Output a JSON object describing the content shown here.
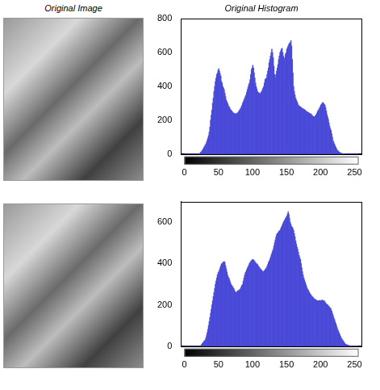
{
  "image_titles": [
    "Original Image"
  ],
  "chart_data": [
    {
      "type": "histogram",
      "title": "Original Histogram",
      "color": "#4a4ad8",
      "bins": [
        0,
        1,
        2,
        3,
        4,
        5,
        6,
        7,
        8,
        9,
        10,
        11,
        12,
        13,
        14,
        15,
        16,
        17,
        18,
        19,
        20,
        21,
        22,
        23,
        24,
        25,
        26,
        27,
        28,
        29,
        30,
        31,
        32,
        33,
        34,
        35,
        36,
        37,
        38,
        39,
        40,
        41,
        42,
        43,
        44,
        45,
        46,
        47,
        48,
        49,
        50,
        51,
        52,
        53,
        54,
        55,
        56,
        57,
        58,
        59,
        60,
        61,
        62,
        63,
        64,
        65,
        66,
        67,
        68,
        69,
        70,
        71,
        72,
        73,
        74,
        75,
        76,
        77,
        78,
        79,
        80,
        81,
        82,
        83,
        84,
        85,
        86,
        87,
        88,
        89,
        90,
        91,
        92,
        93,
        94,
        95,
        96,
        97,
        98,
        99,
        100,
        101,
        102,
        103,
        104,
        105,
        106,
        107,
        108,
        109,
        110,
        111,
        112,
        113,
        114,
        115,
        116,
        117,
        118,
        119,
        120,
        121,
        122,
        123,
        124,
        125,
        126,
        127,
        128,
        129,
        130,
        131,
        132,
        133,
        134,
        135,
        136,
        137,
        138,
        139,
        140,
        141,
        142,
        143,
        144,
        145,
        146,
        147,
        148,
        149,
        150,
        151,
        152,
        153,
        154,
        155,
        156,
        157,
        158,
        159,
        160,
        161,
        162,
        163,
        164,
        165,
        166,
        167,
        168,
        169,
        170,
        171,
        172,
        173,
        174,
        175,
        176,
        177,
        178,
        179,
        180,
        181,
        182,
        183,
        184,
        185,
        186,
        187,
        188,
        189,
        190,
        191,
        192,
        193,
        194,
        195,
        196,
        197,
        198,
        199,
        200,
        201,
        202,
        203,
        204,
        205,
        206,
        207,
        208,
        209,
        210,
        211,
        212,
        213,
        214,
        215,
        216,
        217,
        218,
        219,
        220,
        221,
        222,
        223,
        224,
        225,
        226,
        227,
        228,
        229,
        230,
        231,
        232,
        233,
        234,
        235,
        236,
        237,
        238,
        239,
        240,
        241,
        242,
        243,
        244,
        245,
        246,
        247,
        248,
        249,
        250,
        251,
        252,
        253,
        254,
        255,
        256
      ],
      "values": [
        0,
        0,
        0,
        0,
        0,
        0,
        0,
        0,
        0,
        0,
        0,
        0,
        0,
        0,
        0,
        0,
        0,
        0,
        0,
        0,
        0,
        2,
        4,
        8,
        12,
        18,
        24,
        30,
        38,
        45,
        52,
        60,
        70,
        82,
        95,
        110,
        130,
        160,
        200,
        230,
        260,
        300,
        330,
        370,
        400,
        430,
        450,
        470,
        480,
        495,
        505,
        490,
        475,
        460,
        430,
        420,
        400,
        390,
        380,
        360,
        340,
        320,
        310,
        300,
        290,
        280,
        275,
        265,
        260,
        255,
        250,
        245,
        242,
        240,
        238,
        240,
        236,
        242,
        245,
        250,
        258,
        262,
        270,
        278,
        288,
        300,
        310,
        320,
        330,
        340,
        350,
        365,
        380,
        395,
        410,
        420,
        440,
        470,
        500,
        510,
        525,
        510,
        480,
        450,
        420,
        400,
        385,
        370,
        365,
        360,
        360,
        355,
        365,
        370,
        380,
        390,
        400,
        420,
        440,
        445,
        450,
        470,
        490,
        510,
        540,
        560,
        580,
        600,
        620,
        600,
        570,
        520,
        470,
        450,
        470,
        490,
        510,
        530,
        560,
        580,
        600,
        610,
        620,
        625,
        600,
        580,
        560,
        570,
        590,
        600,
        620,
        630,
        640,
        650,
        655,
        660,
        670,
        640,
        560,
        480,
        400,
        370,
        350,
        330,
        320,
        310,
        300,
        290,
        285,
        280,
        280,
        275,
        272,
        270,
        268,
        265,
        262,
        260,
        255,
        250,
        250,
        248,
        245,
        242,
        240,
        238,
        235,
        230,
        225,
        222,
        220,
        222,
        226,
        232,
        240,
        250,
        258,
        265,
        272,
        280,
        290,
        295,
        300,
        305,
        300,
        295,
        290,
        275,
        255,
        235,
        220,
        205,
        185,
        165,
        150,
        140,
        120,
        100,
        80,
        70,
        60,
        50,
        40,
        32,
        25,
        20,
        15,
        12,
        9,
        7,
        5,
        4,
        3,
        2,
        2,
        1,
        1,
        0,
        0,
        0,
        0,
        0,
        0,
        0,
        0,
        0,
        0,
        0,
        0,
        0,
        0,
        0,
        0,
        0,
        0,
        0
      ],
      "xlim": [
        -5,
        260
      ],
      "xticks": [
        0,
        50,
        100,
        150,
        200,
        250
      ],
      "ylim": [
        0,
        800
      ],
      "yticks": [
        0,
        200,
        400,
        600,
        800
      ],
      "grid": false
    },
    {
      "type": "histogram",
      "color": "#4a4ad8",
      "bins": [
        0,
        1,
        2,
        3,
        4,
        5,
        6,
        7,
        8,
        9,
        10,
        11,
        12,
        13,
        14,
        15,
        16,
        17,
        18,
        19,
        20,
        21,
        22,
        23,
        24,
        25,
        26,
        27,
        28,
        29,
        30,
        31,
        32,
        33,
        34,
        35,
        36,
        37,
        38,
        39,
        40,
        41,
        42,
        43,
        44,
        45,
        46,
        47,
        48,
        49,
        50,
        51,
        52,
        53,
        54,
        55,
        56,
        57,
        58,
        59,
        60,
        61,
        62,
        63,
        64,
        65,
        66,
        67,
        68,
        69,
        70,
        71,
        72,
        73,
        74,
        75,
        76,
        77,
        78,
        79,
        80,
        81,
        82,
        83,
        84,
        85,
        86,
        87,
        88,
        89,
        90,
        91,
        92,
        93,
        94,
        95,
        96,
        97,
        98,
        99,
        100,
        101,
        102,
        103,
        104,
        105,
        106,
        107,
        108,
        109,
        110,
        111,
        112,
        113,
        114,
        115,
        116,
        117,
        118,
        119,
        120,
        121,
        122,
        123,
        124,
        125,
        126,
        127,
        128,
        129,
        130,
        131,
        132,
        133,
        134,
        135,
        136,
        137,
        138,
        139,
        140,
        141,
        142,
        143,
        144,
        145,
        146,
        147,
        148,
        149,
        150,
        151,
        152,
        153,
        154,
        155,
        156,
        157,
        158,
        159,
        160,
        161,
        162,
        163,
        164,
        165,
        166,
        167,
        168,
        169,
        170,
        171,
        172,
        173,
        174,
        175,
        176,
        177,
        178,
        179,
        180,
        181,
        182,
        183,
        184,
        185,
        186,
        187,
        188,
        189,
        190,
        191,
        192,
        193,
        194,
        195,
        196,
        197,
        198,
        199,
        200,
        201,
        202,
        203,
        204,
        205,
        206,
        207,
        208,
        209,
        210,
        211,
        212,
        213,
        214,
        215,
        216,
        217,
        218,
        219,
        220,
        221,
        222,
        223,
        224,
        225,
        226,
        227,
        228,
        229,
        230,
        231,
        232,
        233,
        234,
        235,
        236,
        237,
        238,
        239,
        240,
        241,
        242,
        243,
        244,
        245,
        246,
        247,
        248,
        249,
        250,
        251,
        252,
        253,
        254,
        255,
        256
      ],
      "values": [
        0,
        0,
        0,
        0,
        0,
        0,
        0,
        0,
        0,
        0,
        0,
        0,
        0,
        0,
        0,
        0,
        0,
        0,
        0,
        0,
        0,
        0,
        0,
        2,
        5,
        10,
        14,
        18,
        22,
        26,
        30,
        40,
        52,
        66,
        82,
        100,
        120,
        140,
        160,
        180,
        200,
        220,
        240,
        260,
        280,
        300,
        315,
        330,
        345,
        355,
        360,
        370,
        380,
        390,
        398,
        400,
        405,
        408,
        410,
        405,
        390,
        375,
        360,
        345,
        335,
        330,
        320,
        310,
        300,
        295,
        290,
        285,
        280,
        272,
        265,
        260,
        262,
        265,
        268,
        270,
        270,
        275,
        280,
        288,
        295,
        300,
        315,
        330,
        345,
        355,
        360,
        370,
        378,
        385,
        392,
        400,
        405,
        410,
        415,
        418,
        420,
        418,
        415,
        410,
        405,
        400,
        398,
        395,
        390,
        385,
        380,
        375,
        372,
        368,
        364,
        360,
        362,
        366,
        370,
        375,
        380,
        388,
        395,
        405,
        412,
        420,
        430,
        440,
        450,
        460,
        470,
        485,
        500,
        515,
        528,
        540,
        545,
        550,
        555,
        558,
        560,
        568,
        576,
        584,
        592,
        600,
        605,
        612,
        618,
        624,
        630,
        640,
        650,
        640,
        620,
        600,
        590,
        580,
        575,
        570,
        560,
        545,
        530,
        510,
        495,
        480,
        470,
        455,
        440,
        430,
        420,
        400,
        380,
        360,
        345,
        330,
        320,
        310,
        300,
        290,
        280,
        274,
        268,
        262,
        256,
        250,
        246,
        242,
        238,
        234,
        230,
        228,
        226,
        224,
        222,
        220,
        220,
        221,
        222,
        222,
        220,
        222,
        224,
        222,
        220,
        220,
        215,
        210,
        205,
        202,
        200,
        196,
        192,
        188,
        184,
        180,
        170,
        160,
        150,
        140,
        130,
        120,
        110,
        100,
        90,
        80,
        72,
        64,
        56,
        48,
        40,
        35,
        30,
        25,
        20,
        15,
        12,
        10,
        8,
        6,
        5,
        4,
        3,
        2,
        1,
        0,
        0,
        0,
        0,
        0,
        0,
        0,
        0,
        0,
        0,
        0
      ],
      "xlim": [
        -5,
        260
      ],
      "xticks": [
        0,
        50,
        100,
        150,
        200,
        250
      ],
      "ylim": [
        0,
        700
      ],
      "yticks": [
        0,
        200,
        400,
        600
      ],
      "grid": false
    }
  ]
}
